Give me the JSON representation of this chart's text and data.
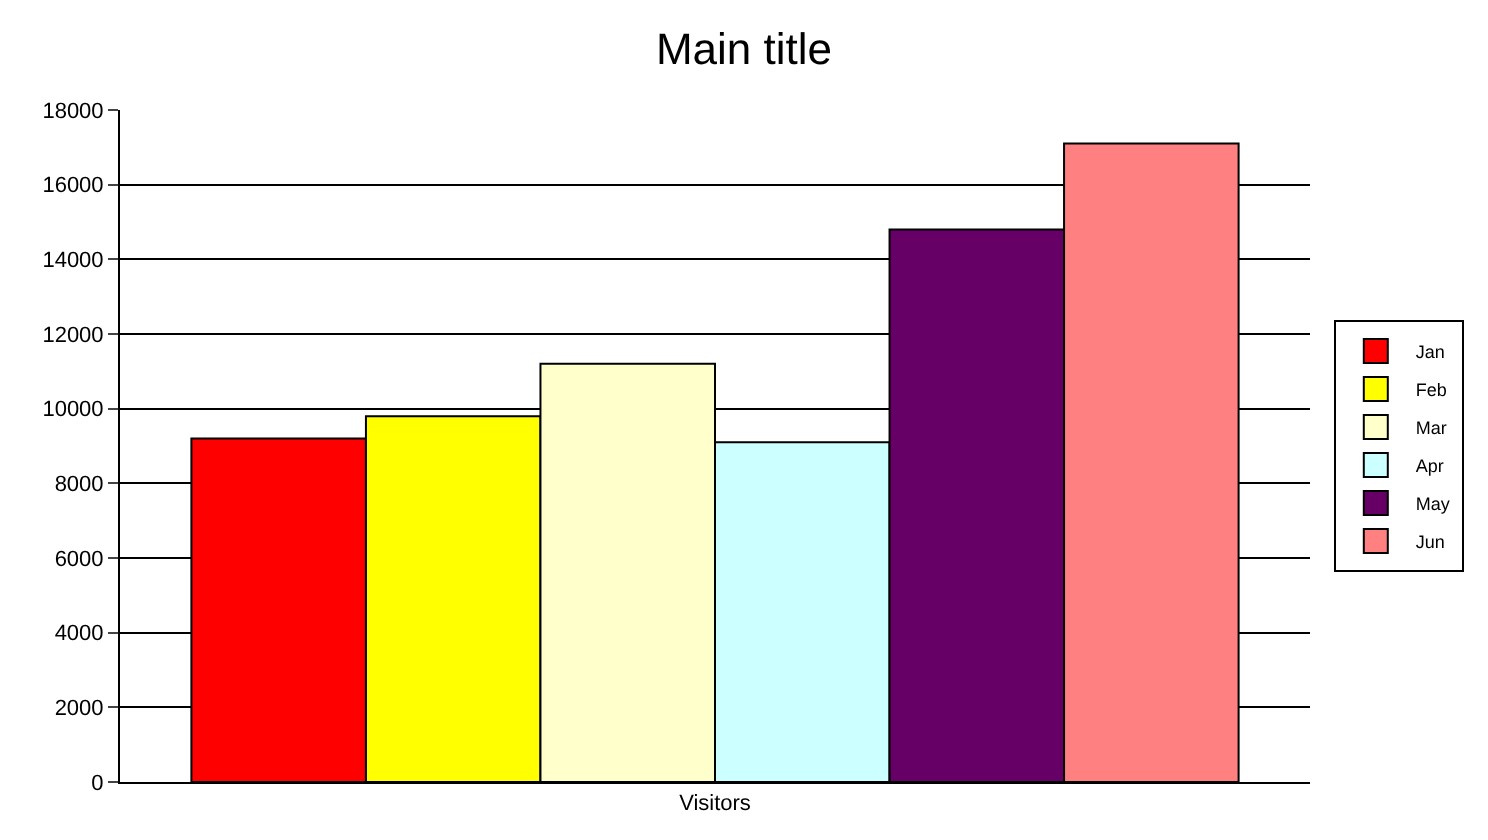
{
  "chart_data": {
    "type": "bar",
    "title": "Main title",
    "categories": [
      "Visitors"
    ],
    "series": [
      {
        "name": "Jan",
        "color": "#ff0000",
        "values": [
          9200
        ]
      },
      {
        "name": "Feb",
        "color": "#ffff00",
        "values": [
          9800
        ]
      },
      {
        "name": "Mar",
        "color": "#ffffcc",
        "values": [
          11200
        ]
      },
      {
        "name": "Apr",
        "color": "#ccffff",
        "values": [
          9100
        ]
      },
      {
        "name": "May",
        "color": "#660066",
        "values": [
          14800
        ]
      },
      {
        "name": "Jun",
        "color": "#ff8080",
        "values": [
          17100
        ]
      }
    ],
    "ylim": [
      0,
      18000
    ],
    "yticks": [
      0,
      2000,
      4000,
      6000,
      8000,
      10000,
      12000,
      14000,
      16000,
      18000
    ],
    "grid": "y",
    "legend": "right"
  }
}
